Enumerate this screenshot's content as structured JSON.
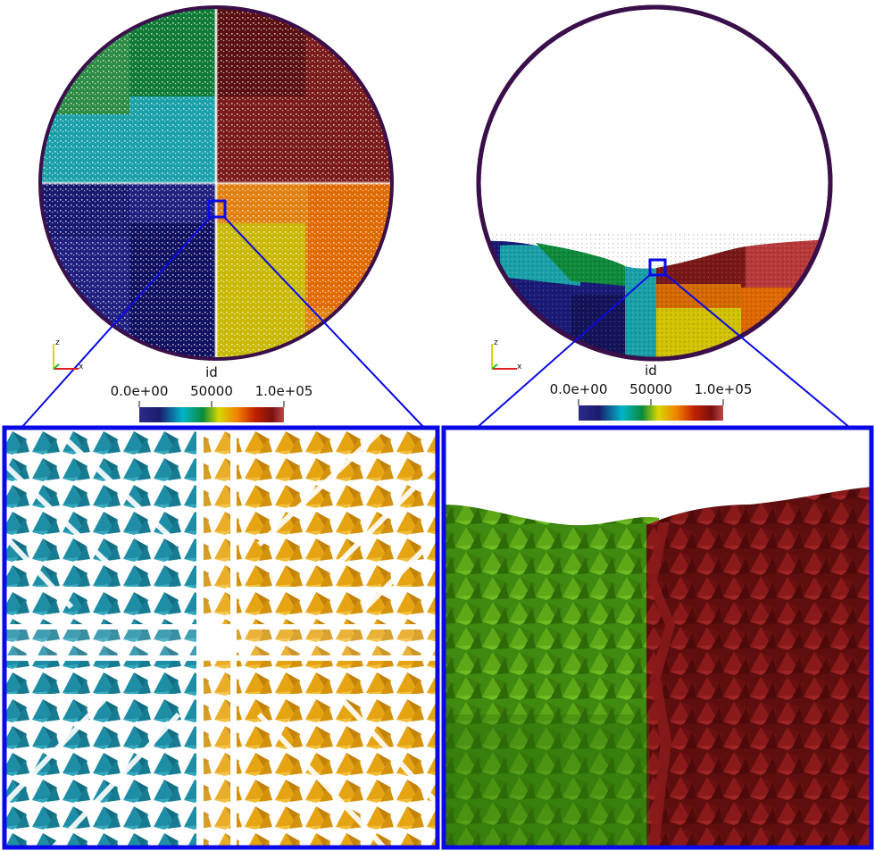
{
  "colors": {
    "frame_blue": "#0a0ae6",
    "drum_rim": "#3a0f4a",
    "teal_particles": "#1c8aa0",
    "amber_particles": "#e0a010",
    "green_particles": "#4e9a12",
    "red_particles": "#7a1414"
  },
  "left_panel": {
    "colorbar": {
      "title": "id",
      "min_label": "0.0e+00",
      "mid_label": "50000",
      "max_label": "1.0e+05"
    },
    "axes": {
      "x": "x",
      "z": "z"
    }
  },
  "right_panel": {
    "colorbar": {
      "title": "id",
      "min_label": "0.0e+00",
      "mid_label": "50000",
      "max_label": "1.0e+05"
    },
    "axes": {
      "x": "x",
      "z": "z"
    }
  },
  "colormap_stops": [
    "#2a2a8c",
    "#1b1b6e",
    "#00b5c8",
    "#0a8a3a",
    "#d8d800",
    "#f08000",
    "#c02000",
    "#7a1010",
    "#c04848"
  ]
}
